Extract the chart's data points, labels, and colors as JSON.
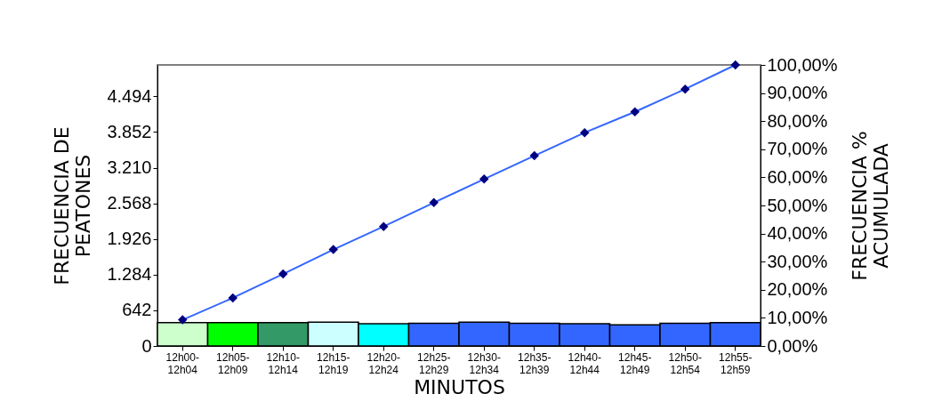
{
  "chart_data": {
    "type": "bar",
    "xlabel": "MINUTOS",
    "ylabel": "FRECUENCIA DE PEATONES",
    "y2label": "FRECUENCIA % ACUMULADA",
    "categories": [
      "12h00-12h04",
      "12h05-12h09",
      "12h10-12h14",
      "12h15-12h19",
      "12h20-12h24",
      "12h25-12h29",
      "12h30-12h34",
      "12h35-12h39",
      "12h40-12h44",
      "12h45-12h49",
      "12h50-12h54",
      "12h55-12h59"
    ],
    "series": [
      {
        "colors": [
          "#ccffcc",
          "#00ff00",
          "#339966",
          "#ccffff",
          "#00ffff",
          "#3366ff",
          "#3366ff",
          "#3366ff",
          "#3366ff",
          "#3366ff",
          "#3366ff",
          "#3366ff"
        ],
        "values": [
          420,
          420,
          420,
          430,
          400,
          410,
          430,
          410,
          400,
          380,
          410,
          420
        ]
      },
      {
        "type": "line",
        "axis": "y2",
        "color": "#3366ff",
        "values": [
          9.3,
          17.1,
          25.6,
          34.3,
          42.5,
          51.0,
          59.4,
          67.7,
          75.9,
          83.3,
          91.4,
          100
        ]
      }
    ],
    "ylim": [
      0,
      5060
    ],
    "yticks": [
      0,
      642,
      {
        "value": 1284,
        "label": "1.284"
      },
      {
        "value": 1926,
        "label": "1.926"
      },
      {
        "value": 2568,
        "label": "2.568"
      },
      {
        "value": 3210,
        "label": "3.210"
      },
      {
        "value": 3852,
        "label": "3.852"
      },
      {
        "value": 4494,
        "label": "4.494"
      }
    ],
    "y2lim": [
      0,
      100
    ],
    "y2ticks": [
      {
        "value": 0,
        "label": "0,00%"
      },
      {
        "value": 10,
        "label": "10,00%"
      },
      {
        "value": 20,
        "label": "20,00%"
      },
      {
        "value": 30,
        "label": "30,00%"
      },
      {
        "value": 40,
        "label": "40,00%"
      },
      {
        "value": 50,
        "label": "50,00%"
      },
      {
        "value": 60,
        "label": "60,00%"
      },
      {
        "value": 70,
        "label": "70,00%"
      },
      {
        "value": 80,
        "label": "80,00%"
      },
      {
        "value": 90,
        "label": "90,00%"
      },
      {
        "value": 100,
        "label": "100,00%"
      }
    ],
    "marker": "diamond",
    "grid": false,
    "legend": false
  }
}
